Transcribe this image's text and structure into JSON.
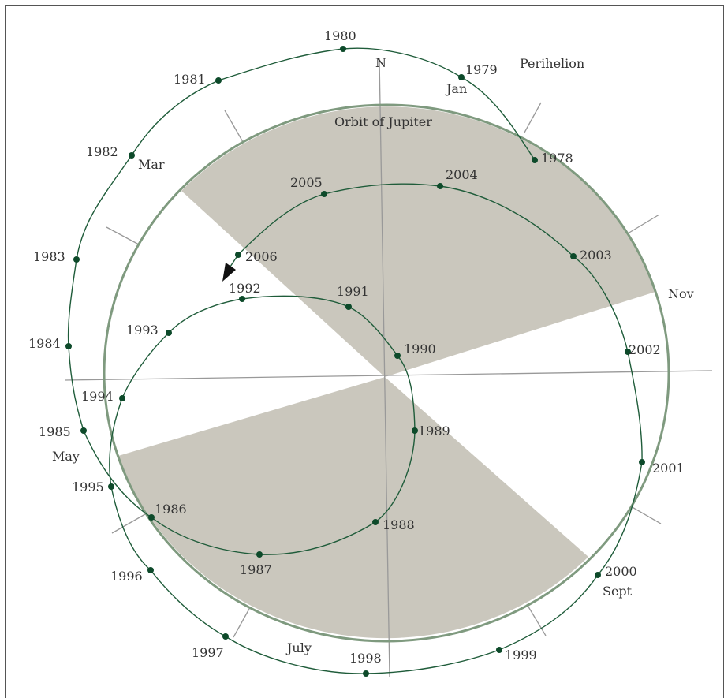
{
  "title": "Orbit of Jupiter",
  "north_label": "N",
  "perihelion_label": "Perihelion",
  "colors": {
    "path": "#1f5c3a",
    "dot": "#0d4a2a",
    "circle": "#7f9a7f",
    "shade": "#cac7bd",
    "axis": "#999999",
    "arrow": "#111111"
  },
  "month_labels": [
    "Jan",
    "Mar",
    "May",
    "July",
    "Sept",
    "Nov"
  ],
  "years": [
    "1978",
    "1979",
    "1980",
    "1981",
    "1982",
    "1983",
    "1984",
    "1985",
    "1986",
    "1987",
    "1988",
    "1989",
    "1990",
    "1991",
    "1992",
    "1993",
    "1994",
    "1995",
    "1996",
    "1997",
    "1998",
    "1999",
    "2000",
    "2001",
    "2002",
    "2003",
    "2004",
    "2005",
    "2006"
  ]
}
